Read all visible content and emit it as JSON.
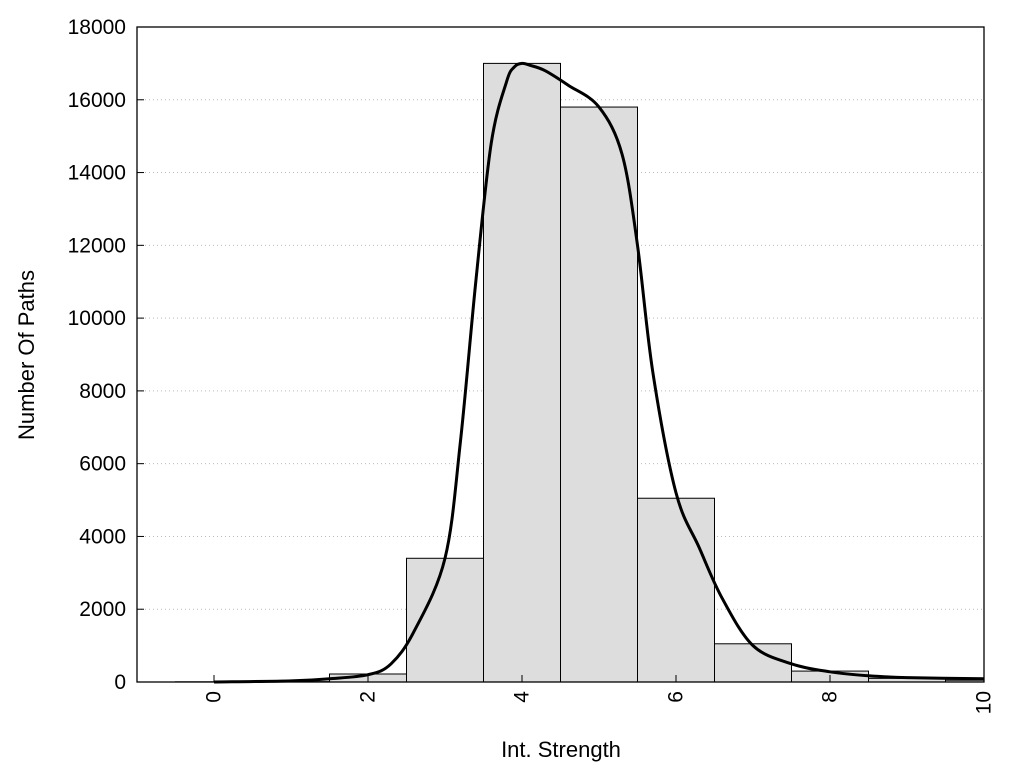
{
  "chart_data": {
    "type": "bar",
    "subtype": "histogram-with-fitted-curve",
    "title": "",
    "xlabel": "Int. Strength",
    "ylabel": "Number Of Paths",
    "xlim": [
      -1,
      10
    ],
    "ylim": [
      0,
      18000
    ],
    "x_ticks": [
      0,
      2,
      4,
      6,
      8,
      10
    ],
    "y_ticks": [
      0,
      2000,
      4000,
      6000,
      8000,
      10000,
      12000,
      14000,
      16000,
      18000
    ],
    "x_tick_rotation": -90,
    "grid": {
      "horizontal": true,
      "vertical": false,
      "style": "dotted"
    },
    "bin_width": 1,
    "bins": {
      "centers": [
        0,
        1,
        2,
        3,
        4,
        5,
        6,
        7,
        8,
        9,
        10
      ],
      "values": [
        5,
        10,
        220,
        3400,
        17000,
        15800,
        5050,
        1050,
        300,
        100,
        50
      ]
    },
    "curve": {
      "x": [
        0,
        1,
        1.5,
        2,
        2.3,
        2.6,
        3,
        3.2,
        3.4,
        3.6,
        3.8,
        3.9,
        4,
        4.1,
        4.3,
        4.6,
        5,
        5.3,
        5.5,
        5.7,
        6,
        6.3,
        6.6,
        7,
        7.5,
        8,
        8.5,
        9,
        10
      ],
      "y": [
        0,
        30,
        90,
        200,
        500,
        1400,
        3400,
        6600,
        11000,
        14800,
        16500,
        16900,
        17000,
        16950,
        16800,
        16400,
        15800,
        14500,
        12000,
        8500,
        5200,
        3700,
        2300,
        1000,
        500,
        280,
        170,
        120,
        90
      ]
    },
    "colors": {
      "bar_fill": "#dddddd",
      "bar_stroke": "#000000",
      "curve": "#000000",
      "grid": "#bbbbbb"
    }
  }
}
